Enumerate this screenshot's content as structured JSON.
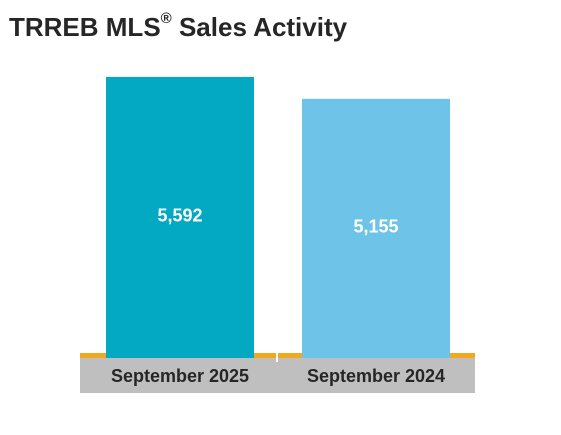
{
  "title_main": "TRREB MLS",
  "title_reg": "®",
  "title_rest": " Sales Activity",
  "colors": {
    "bar_2025": "#03a9c3",
    "bar_2024": "#6ec4e8",
    "axis_accent": "#f2a81d",
    "category_band": "#bfbfbf",
    "title_text": "#262626"
  },
  "chart_data": {
    "type": "bar",
    "title": "TRREB MLS® Sales Activity",
    "categories": [
      "September 2025",
      "September 2024"
    ],
    "values": [
      5592,
      5155
    ],
    "value_labels": [
      "5,592",
      "5,155"
    ],
    "xlabel": "",
    "ylabel": "",
    "ylim": [
      0,
      5850
    ],
    "grid": false,
    "legend": "none"
  }
}
